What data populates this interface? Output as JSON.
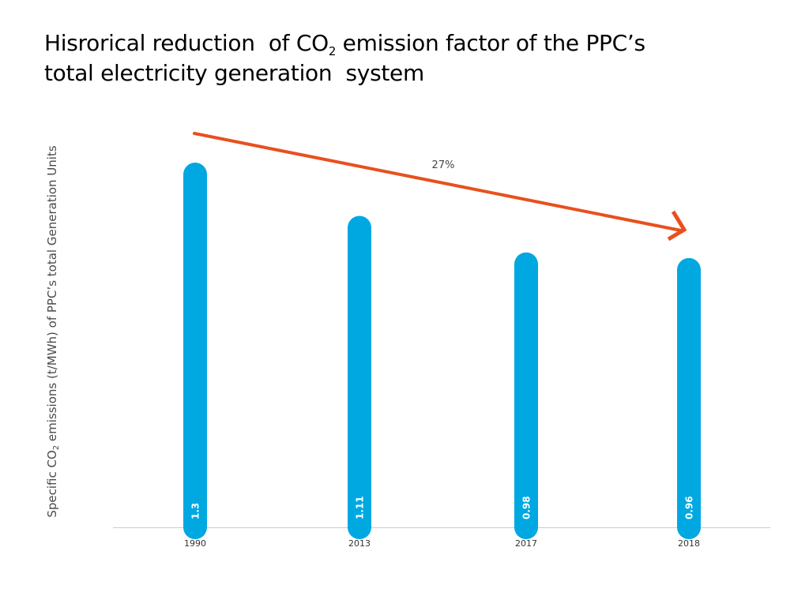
{
  "chart_data": {
    "type": "bar",
    "title_parts": {
      "line1_pre": "Hisrorical reduction  of CO",
      "line1_sub": "2",
      "line1_post": " emission factor of the PPC’s",
      "line2": "total electricity generation  system"
    },
    "ylabel_parts": {
      "pre": "Specific CO",
      "sub": "2",
      "post": " emissions (t/MWh) of PPC’s total Generation Units"
    },
    "xlabel": "",
    "categories": [
      "1990",
      "2013",
      "2017",
      "2018"
    ],
    "values": [
      1.3,
      1.11,
      0.98,
      0.96
    ],
    "value_labels": [
      "1.3",
      "1.11",
      "0.98",
      "0.96"
    ],
    "ylim": [
      0,
      1.3
    ],
    "grid": false,
    "legend": "none",
    "annotation": {
      "text": "27%",
      "type": "trend-arrow",
      "from": "1990",
      "to": "2018"
    },
    "colors": {
      "bar": "#00a8e1",
      "arrow": "#e8501e",
      "axis": "#cccccc"
    }
  }
}
